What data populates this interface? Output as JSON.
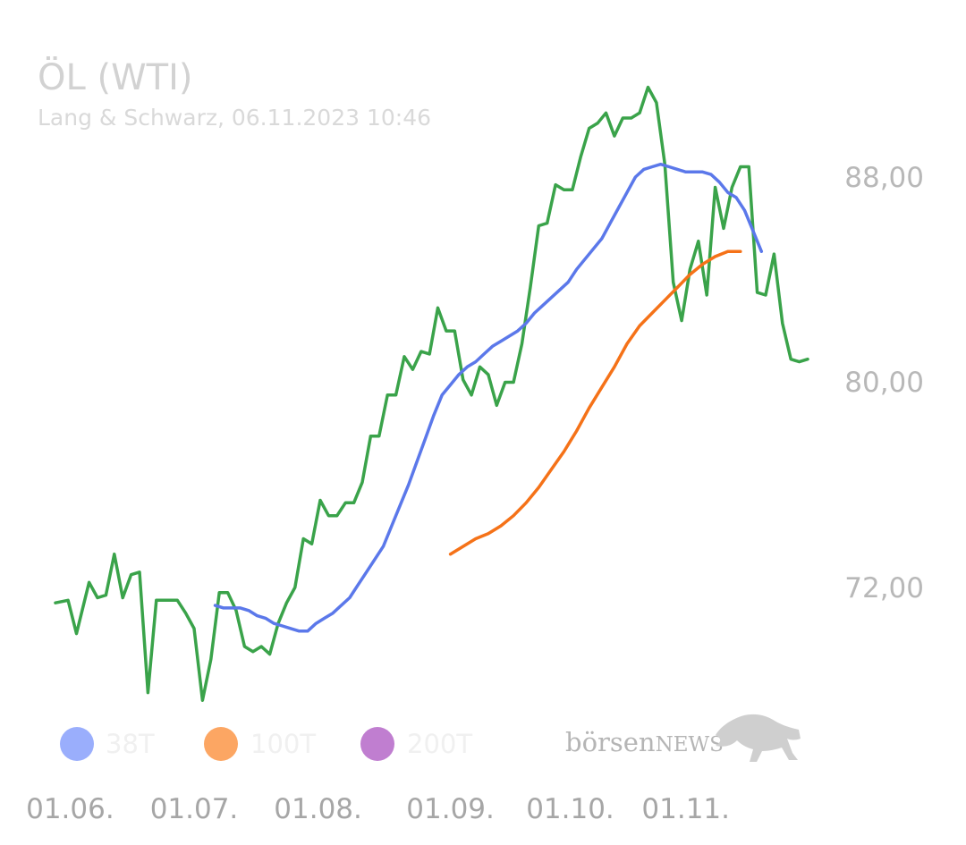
{
  "chart_data": {
    "type": "line",
    "title": "ÖL (WTI)",
    "subtitle": "Lang & Schwarz, 06.11.2023 10:46",
    "y_ticks": [
      "88,00",
      "80,00",
      "72,00"
    ],
    "y_tick_values": [
      88,
      80,
      72
    ],
    "ylim": [
      66.3,
      92.6
    ],
    "x_ticks": [
      "01.06.",
      "01.07.",
      "01.08.",
      "01.09.",
      "01.10.",
      "01.11."
    ],
    "x_tick_values": [
      3.5,
      33,
      62.5,
      94,
      122.5,
      150
    ],
    "x_unit": "trading day index starting late May 2023",
    "grid": false,
    "legend_position": "bottom-left",
    "legend": [
      {
        "label": "38T",
        "color": "#9aaefc"
      },
      {
        "label": "100T",
        "color": "#fca663"
      },
      {
        "label": "200T",
        "color": "#c07ed0"
      }
    ],
    "brand": {
      "part1": "börsen",
      "part2": "NEWS"
    },
    "series": [
      {
        "color": "#3aa34a",
        "points": [
          [
            0,
            71.4
          ],
          [
            3,
            71.5
          ],
          [
            5,
            70.2
          ],
          [
            8,
            72.2
          ],
          [
            10,
            71.6
          ],
          [
            12,
            71.7
          ],
          [
            14,
            73.3
          ],
          [
            16,
            71.6
          ],
          [
            18,
            72.5
          ],
          [
            20,
            72.6
          ],
          [
            22,
            67.9
          ],
          [
            24,
            71.5
          ],
          [
            27,
            71.5
          ],
          [
            29,
            71.5
          ],
          [
            31,
            71.0
          ],
          [
            33,
            70.4
          ],
          [
            35,
            67.6
          ],
          [
            37,
            69.2
          ],
          [
            39,
            71.8
          ],
          [
            41,
            71.8
          ],
          [
            43,
            71.1
          ],
          [
            45,
            69.7
          ],
          [
            47,
            69.5
          ],
          [
            49,
            69.7
          ],
          [
            51,
            69.4
          ],
          [
            53,
            70.6
          ],
          [
            55,
            71.4
          ],
          [
            57,
            72.0
          ],
          [
            59,
            73.9
          ],
          [
            61,
            73.7
          ],
          [
            63,
            75.4
          ],
          [
            65,
            74.8
          ],
          [
            67,
            74.8
          ],
          [
            69,
            75.3
          ],
          [
            71,
            75.3
          ],
          [
            73,
            76.1
          ],
          [
            75,
            77.9
          ],
          [
            77,
            77.9
          ],
          [
            79,
            79.5
          ],
          [
            81,
            79.5
          ],
          [
            83,
            81.0
          ],
          [
            85,
            80.5
          ],
          [
            87,
            81.2
          ],
          [
            89,
            81.1
          ],
          [
            91,
            82.9
          ],
          [
            93,
            82.0
          ],
          [
            95,
            82.0
          ],
          [
            97,
            80.1
          ],
          [
            99,
            79.5
          ],
          [
            101,
            80.6
          ],
          [
            103,
            80.3
          ],
          [
            105,
            79.1
          ],
          [
            107,
            80.0
          ],
          [
            109,
            80.0
          ],
          [
            111,
            81.5
          ],
          [
            113,
            83.7
          ],
          [
            115,
            86.1
          ],
          [
            117,
            86.2
          ],
          [
            119,
            87.7
          ],
          [
            121,
            87.5
          ],
          [
            123,
            87.5
          ],
          [
            125,
            88.8
          ],
          [
            127,
            89.9
          ],
          [
            129,
            90.1
          ],
          [
            131,
            90.5
          ],
          [
            133,
            89.6
          ],
          [
            135,
            90.3
          ],
          [
            137,
            90.3
          ],
          [
            139,
            90.5
          ],
          [
            141,
            91.5
          ],
          [
            143,
            90.9
          ],
          [
            145,
            88.5
          ],
          [
            147,
            83.9
          ],
          [
            149,
            82.4
          ],
          [
            151,
            84.4
          ],
          [
            153,
            85.5
          ],
          [
            155,
            83.4
          ],
          [
            157,
            87.6
          ],
          [
            159,
            86.0
          ],
          [
            161,
            87.6
          ],
          [
            163,
            88.4
          ],
          [
            165,
            88.4
          ],
          [
            167,
            83.5
          ],
          [
            169,
            83.4
          ],
          [
            171,
            85.0
          ],
          [
            173,
            82.3
          ],
          [
            175,
            80.9
          ],
          [
            177,
            80.8
          ],
          [
            179,
            80.9
          ]
        ]
      },
      {
        "color": "#5b78ea",
        "points": [
          [
            38,
            71.3
          ],
          [
            40,
            71.2
          ],
          [
            42,
            71.2
          ],
          [
            44,
            71.2
          ],
          [
            46,
            71.1
          ],
          [
            48,
            70.9
          ],
          [
            50,
            70.8
          ],
          [
            52,
            70.6
          ],
          [
            54,
            70.5
          ],
          [
            56,
            70.4
          ],
          [
            58,
            70.3
          ],
          [
            60,
            70.3
          ],
          [
            62,
            70.6
          ],
          [
            64,
            70.8
          ],
          [
            66,
            71.0
          ],
          [
            68,
            71.3
          ],
          [
            70,
            71.6
          ],
          [
            72,
            72.1
          ],
          [
            74,
            72.6
          ],
          [
            76,
            73.1
          ],
          [
            78,
            73.6
          ],
          [
            80,
            74.4
          ],
          [
            82,
            75.2
          ],
          [
            84,
            76.0
          ],
          [
            86,
            76.9
          ],
          [
            88,
            77.8
          ],
          [
            90,
            78.7
          ],
          [
            92,
            79.5
          ],
          [
            94,
            79.9
          ],
          [
            96,
            80.3
          ],
          [
            98,
            80.6
          ],
          [
            100,
            80.8
          ],
          [
            102,
            81.1
          ],
          [
            104,
            81.4
          ],
          [
            106,
            81.6
          ],
          [
            108,
            81.8
          ],
          [
            110,
            82.0
          ],
          [
            112,
            82.3
          ],
          [
            114,
            82.7
          ],
          [
            116,
            83.0
          ],
          [
            118,
            83.3
          ],
          [
            120,
            83.6
          ],
          [
            122,
            83.9
          ],
          [
            124,
            84.4
          ],
          [
            126,
            84.8
          ],
          [
            128,
            85.2
          ],
          [
            130,
            85.6
          ],
          [
            132,
            86.2
          ],
          [
            134,
            86.8
          ],
          [
            136,
            87.4
          ],
          [
            138,
            88.0
          ],
          [
            140,
            88.3
          ],
          [
            142,
            88.4
          ],
          [
            144,
            88.5
          ],
          [
            146,
            88.4
          ],
          [
            148,
            88.3
          ],
          [
            150,
            88.2
          ],
          [
            152,
            88.2
          ],
          [
            154,
            88.2
          ],
          [
            156,
            88.1
          ],
          [
            158,
            87.8
          ],
          [
            160,
            87.4
          ],
          [
            162,
            87.2
          ],
          [
            164,
            86.7
          ],
          [
            166,
            85.9
          ],
          [
            168,
            85.1
          ]
        ]
      },
      {
        "color": "#f57218",
        "points": [
          [
            94,
            73.3
          ],
          [
            97,
            73.6
          ],
          [
            100,
            73.9
          ],
          [
            103,
            74.1
          ],
          [
            106,
            74.4
          ],
          [
            109,
            74.8
          ],
          [
            112,
            75.3
          ],
          [
            115,
            75.9
          ],
          [
            118,
            76.6
          ],
          [
            121,
            77.3
          ],
          [
            124,
            78.1
          ],
          [
            127,
            79.0
          ],
          [
            130,
            79.8
          ],
          [
            133,
            80.6
          ],
          [
            136,
            81.5
          ],
          [
            139,
            82.2
          ],
          [
            142,
            82.7
          ],
          [
            145,
            83.2
          ],
          [
            148,
            83.7
          ],
          [
            151,
            84.2
          ],
          [
            154,
            84.6
          ],
          [
            157,
            84.9
          ],
          [
            160,
            85.1
          ],
          [
            163,
            85.1
          ]
        ]
      }
    ]
  }
}
